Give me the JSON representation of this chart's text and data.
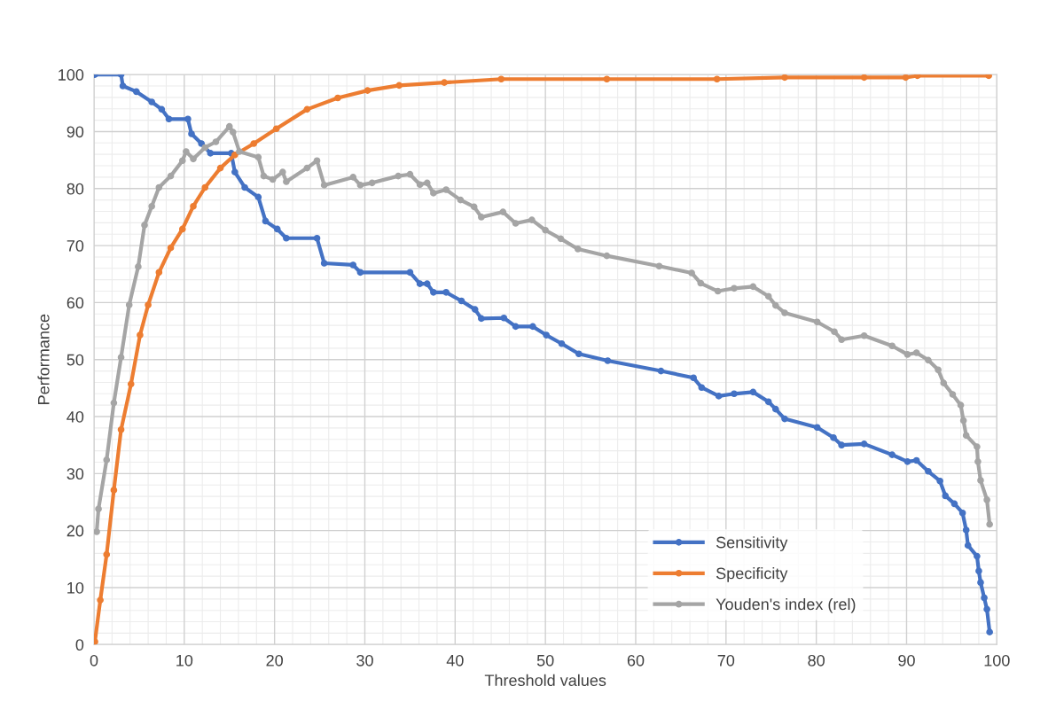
{
  "chart_data": {
    "type": "line",
    "xlabel": "Threshold values",
    "ylabel": "Performance",
    "xlim": [
      0,
      100
    ],
    "ylim": [
      0,
      100
    ],
    "xticks": [
      0,
      10,
      20,
      30,
      40,
      50,
      60,
      70,
      80,
      90,
      100
    ],
    "yticks": [
      0,
      10,
      20,
      30,
      40,
      50,
      60,
      70,
      80,
      90,
      100
    ],
    "grid": true,
    "legend": "bottom right",
    "marker": "circle",
    "line_style": "solid",
    "series": [
      {
        "name": "Sensitivity",
        "color": "#4472c4",
        "x": [
          0.1,
          3.0,
          3.2,
          4.7,
          6.4,
          7.5,
          8.3,
          10.4,
          10.8,
          11.9,
          12.9,
          15.2,
          15.6,
          16.7,
          18.2,
          19.0,
          20.3,
          21.3,
          24.7,
          25.5,
          28.7,
          29.5,
          35.0,
          36.1,
          36.9,
          37.6,
          39.0,
          40.7,
          42.2,
          42.9,
          45.4,
          46.7,
          48.6,
          50.1,
          51.8,
          53.7,
          56.9,
          62.8,
          66.4,
          67.3,
          69.2,
          70.9,
          73.0,
          74.7,
          75.5,
          76.5,
          80.1,
          81.9,
          82.8,
          85.3,
          88.4,
          90.1,
          91.1,
          92.4,
          93.7,
          94.3,
          95.3,
          96.2,
          96.6,
          96.8,
          97.8,
          98.0,
          98.2,
          98.6,
          98.9,
          99.2
        ],
        "values": [
          100,
          100,
          98.0,
          97.0,
          95.2,
          93.9,
          92.2,
          92.2,
          89.6,
          87.9,
          86.2,
          86.2,
          82.9,
          80.2,
          78.5,
          74.3,
          72.9,
          71.3,
          71.3,
          66.9,
          66.6,
          65.3,
          65.3,
          63.3,
          63.3,
          61.8,
          61.8,
          60.3,
          58.8,
          57.2,
          57.3,
          55.8,
          55.8,
          54.3,
          52.8,
          51.0,
          49.8,
          48.0,
          46.8,
          45.1,
          43.6,
          44.0,
          44.3,
          42.6,
          41.3,
          39.6,
          38.1,
          36.3,
          35.0,
          35.2,
          33.3,
          32.1,
          32.3,
          30.4,
          28.7,
          26.1,
          24.7,
          23.1,
          20.1,
          17.4,
          15.5,
          12.9,
          10.9,
          8.2,
          6.2,
          2.2
        ]
      },
      {
        "name": "Specificity",
        "color": "#ed7d31",
        "x": [
          0.1,
          0.7,
          1.4,
          2.2,
          3.0,
          4.1,
          5.1,
          6.0,
          7.2,
          8.5,
          9.8,
          11.0,
          12.3,
          14.0,
          15.6,
          17.7,
          20.2,
          23.6,
          27.0,
          30.3,
          33.8,
          38.8,
          45.1,
          56.8,
          69.0,
          76.5,
          85.3,
          89.9,
          91.2,
          99.1
        ],
        "values": [
          0.5,
          7.8,
          15.8,
          27.1,
          37.7,
          45.7,
          54.3,
          59.6,
          65.3,
          69.6,
          72.9,
          76.9,
          80.2,
          83.6,
          85.9,
          87.9,
          90.5,
          93.9,
          95.9,
          97.2,
          98.1,
          98.6,
          99.2,
          99.2,
          99.2,
          99.5,
          99.5,
          99.5,
          99.8,
          99.8
        ]
      },
      {
        "name": "Youden's index (rel)",
        "color": "#a5a5a5",
        "x": [
          0.3,
          0.5,
          1.4,
          2.2,
          3.0,
          3.9,
          4.9,
          5.6,
          6.4,
          7.2,
          8.5,
          9.8,
          10.2,
          11.0,
          12.3,
          13.5,
          15.0,
          15.4,
          16.1,
          18.2,
          18.8,
          19.8,
          20.9,
          21.3,
          23.6,
          24.7,
          25.5,
          28.7,
          29.5,
          30.8,
          33.7,
          35.0,
          36.1,
          36.9,
          37.6,
          39.0,
          40.6,
          42.1,
          42.9,
          45.3,
          46.7,
          48.5,
          50.0,
          51.7,
          53.6,
          56.8,
          62.6,
          66.2,
          67.2,
          69.1,
          70.9,
          73.0,
          74.7,
          75.5,
          76.5,
          80.1,
          82.0,
          82.8,
          85.3,
          88.4,
          90.1,
          91.1,
          92.4,
          93.5,
          94.1,
          95.1,
          96.0,
          96.3,
          96.6,
          97.8,
          97.9,
          98.2,
          98.9,
          99.2
        ],
        "values": [
          19.8,
          23.8,
          32.4,
          42.4,
          50.4,
          59.6,
          66.3,
          73.6,
          76.9,
          80.2,
          82.2,
          84.9,
          86.5,
          85.2,
          87.2,
          88.2,
          90.9,
          89.9,
          86.5,
          85.5,
          82.2,
          81.6,
          82.9,
          81.2,
          83.6,
          84.9,
          80.6,
          82.0,
          80.6,
          81.0,
          82.2,
          82.5,
          80.7,
          81.0,
          79.2,
          79.8,
          78.0,
          76.8,
          75.0,
          75.9,
          73.9,
          74.5,
          72.7,
          71.2,
          69.4,
          68.2,
          66.4,
          65.2,
          63.4,
          62.0,
          62.5,
          62.8,
          61.1,
          59.5,
          58.2,
          56.6,
          54.9,
          53.5,
          54.2,
          52.4,
          50.9,
          51.2,
          49.9,
          48.2,
          45.9,
          43.9,
          42.0,
          39.3,
          36.7,
          34.7,
          32.1,
          28.8,
          25.4,
          21.1
        ]
      }
    ]
  }
}
